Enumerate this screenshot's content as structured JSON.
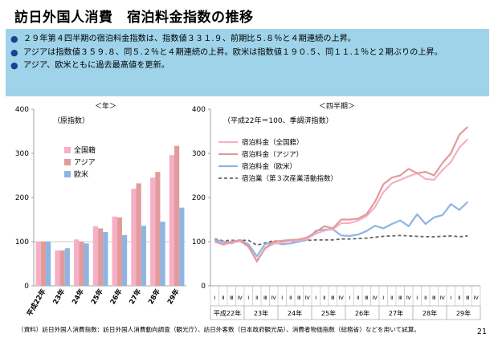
{
  "title": "訪日外国人消費　宿泊料金指数の推移",
  "bullets": [
    "２９年第４四半期の宿泊料金指数は、指数値３３１.９、前期比５.８％と４期連続の上昇。",
    "アジアは指数値３５９.８、同５.２％と４期連続の上昇。欧米は指数値１９０.５、同１１.１％と２期ぶりの上昇。",
    "アジア、欧米ともに過去最高値を更新。"
  ],
  "note": "（資料）訪日外国人消費指数：訪日外国人消費動向調査（観光庁）、訪日外客数（日本政府観光局）、消費者物価指数（総務省）などを用いて試算。",
  "page_number": "21",
  "colors": {
    "all": "#f7afc5",
    "asia": "#e19b9b",
    "west": "#8fb4e3",
    "tertiary": "#666666",
    "banner": "#9ed3ea",
    "bullet": "#1f3f8f"
  },
  "chart_data": [
    {
      "type": "bar",
      "title": "＜年＞",
      "ylabel": "（原指数）",
      "ylim": [
        0,
        400
      ],
      "yticks": [
        "0",
        "100",
        "200",
        "300",
        "400"
      ],
      "categories": [
        "平成22年",
        "23年",
        "24年",
        "25年",
        "26年",
        "27年",
        "28年",
        "29年"
      ],
      "legend_position": "left",
      "series": [
        {
          "name": "全国籍",
          "values": [
            100,
            80,
            105,
            135,
            157,
            220,
            245,
            296
          ]
        },
        {
          "name": "アジア",
          "values": [
            100,
            80,
            100,
            130,
            155,
            232,
            258,
            317
          ]
        },
        {
          "name": "欧米",
          "values": [
            100,
            85,
            96,
            122,
            115,
            136,
            145,
            177
          ]
        }
      ]
    },
    {
      "type": "line",
      "title": "＜四半期＞",
      "ylabel": "（平成22年＝100、季調済指数）",
      "ylim": [
        0,
        400
      ],
      "yticks": [
        "0",
        "100",
        "200",
        "300",
        "400"
      ],
      "quarter_labels": [
        "Ⅰ",
        "Ⅱ",
        "Ⅲ",
        "Ⅳ"
      ],
      "year_labels": [
        "平成22年",
        "23年",
        "24年",
        "25年",
        "26年",
        "27年",
        "28年",
        "29年"
      ],
      "legend_position": "top-left",
      "series": [
        {
          "name": "宿泊料金（全国籍）",
          "values": [
            100,
            93,
            98,
            101,
            88,
            58,
            85,
            95,
            98,
            102,
            103,
            107,
            118,
            125,
            128,
            142,
            142,
            148,
            158,
            178,
            212,
            232,
            240,
            248,
            255,
            242,
            240,
            262,
            280,
            313,
            332
          ]
        },
        {
          "name": "宿泊料金（アジア）",
          "values": [
            100,
            95,
            100,
            103,
            90,
            55,
            86,
            100,
            102,
            104,
            105,
            110,
            122,
            135,
            130,
            150,
            150,
            152,
            162,
            190,
            230,
            245,
            250,
            265,
            255,
            258,
            250,
            278,
            300,
            342,
            360
          ]
        },
        {
          "name": "宿泊料金（欧米）",
          "values": [
            104,
            100,
            96,
            104,
            94,
            67,
            95,
            98,
            94,
            96,
            100,
            105,
            125,
            127,
            128,
            114,
            113,
            116,
            124,
            136,
            130,
            140,
            148,
            135,
            162,
            140,
            155,
            160,
            185,
            172,
            190
          ]
        },
        {
          "name": "宿泊業（第３次産業活動指数）",
          "values": [
            106,
            102,
            103,
            103,
            103,
            92,
            97,
            102,
            100,
            101,
            102,
            103,
            104,
            104,
            104,
            106,
            106,
            107,
            108,
            110,
            112,
            113,
            114,
            113,
            112,
            111,
            111,
            112,
            113,
            111,
            113
          ]
        }
      ]
    }
  ]
}
